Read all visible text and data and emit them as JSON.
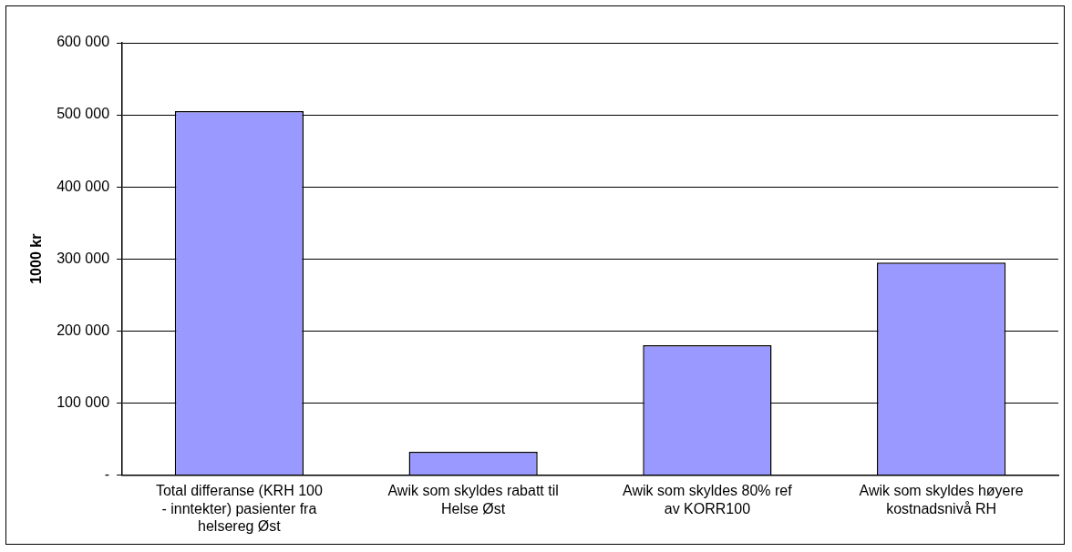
{
  "chart_data": {
    "type": "bar",
    "ylabel": "1000 kr",
    "categories": [
      "Total differanse (KRH 100 - inntekter) pasienter fra helsereg Øst",
      "Awik som skyldes rabatt til Helse Øst",
      "Awik som skyldes 80% ref av KORR100",
      "Awik som skyldes høyere kostnadsnivå RH"
    ],
    "values": [
      505000,
      32000,
      180000,
      295000
    ],
    "color": "#9999ff",
    "ylim": [
      0,
      600000
    ],
    "yticks": [
      {
        "value": 0,
        "label": "-"
      },
      {
        "value": 100000,
        "label": "100 000"
      },
      {
        "value": 200000,
        "label": "200 000"
      },
      {
        "value": 300000,
        "label": "300 000"
      },
      {
        "value": 400000,
        "label": "400 000"
      },
      {
        "value": 500000,
        "label": "500 000"
      },
      {
        "value": 600000,
        "label": "600 000"
      }
    ],
    "grid": "y",
    "legend": false
  }
}
